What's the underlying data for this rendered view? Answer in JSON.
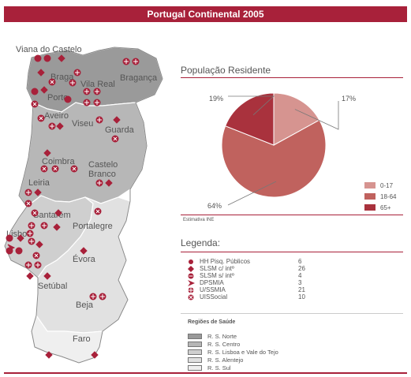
{
  "title": "Portugal Continental 2005",
  "map": {
    "cities": [
      {
        "name": "Viana do Castelo"
      },
      {
        "name": "Braga"
      },
      {
        "name": "Vila Real"
      },
      {
        "name": "Bragança"
      },
      {
        "name": "Porto"
      },
      {
        "name": "Aveiro"
      },
      {
        "name": "Viseu"
      },
      {
        "name": "Guarda"
      },
      {
        "name": "Coimbra"
      },
      {
        "name": "Castelo Branco"
      },
      {
        "name": "Leiria"
      },
      {
        "name": "Santarém"
      },
      {
        "name": "Portalegre"
      },
      {
        "name": "Lisboa"
      },
      {
        "name": "Évora"
      },
      {
        "name": "Setúbal"
      },
      {
        "name": "Beja"
      },
      {
        "name": "Faro"
      }
    ]
  },
  "population": {
    "title": "População Residente",
    "source": "Estimativa INE"
  },
  "chart_data": {
    "type": "pie",
    "title": "População Residente",
    "categories": [
      "0-17",
      "18-64",
      "65+"
    ],
    "values": [
      17,
      64,
      19
    ],
    "labels": [
      "17%",
      "64%",
      "19%"
    ],
    "colors": [
      "#d69490",
      "#c0625e",
      "#a9323d"
    ],
    "legend_position": "right"
  },
  "legend": {
    "title": "Legenda:",
    "items": [
      {
        "symbol": "dot",
        "label": "HH Pisq. Públicos",
        "value": "6"
      },
      {
        "symbol": "diamond",
        "label": "SLSM c/ intº",
        "value": "26"
      },
      {
        "symbol": "circle-minus",
        "label": "SLSM s/ intº",
        "value": "4"
      },
      {
        "symbol": "arrow",
        "label": "DPSMIA",
        "value": "3"
      },
      {
        "symbol": "circle-split",
        "label": "U/SSMIA",
        "value": "21"
      },
      {
        "symbol": "circle-x",
        "label": "UISSocial",
        "value": "10"
      }
    ]
  },
  "regions": {
    "title": "Regiões de Saúde",
    "items": [
      {
        "label": "R. S. Norte",
        "color": "#999999"
      },
      {
        "label": "R. S. Centro",
        "color": "#b6b6b6"
      },
      {
        "label": "R. S. Lisboa e Vale do Tejo",
        "color": "#cfcfcf"
      },
      {
        "label": "R. S. Alentejo",
        "color": "#e0e0e0"
      },
      {
        "label": "R. S. Sul",
        "color": "#eeeeee"
      }
    ]
  },
  "colors": {
    "accent": "#a8213a",
    "marker": "#a8213a"
  }
}
